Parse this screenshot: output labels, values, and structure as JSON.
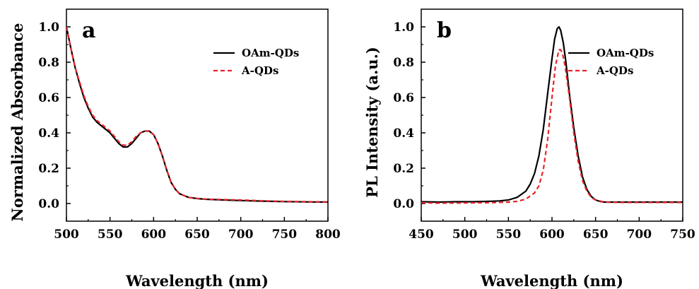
{
  "chart_data": [
    {
      "type": "line",
      "panel_label": "a",
      "xlabel": "Wavelength (nm)",
      "ylabel": "Normalized Absorbance",
      "xlim": [
        500,
        800
      ],
      "ylim": [
        -0.1,
        1.1
      ],
      "x_ticks": [
        500,
        550,
        600,
        650,
        700,
        750,
        800
      ],
      "y_ticks": [
        0.0,
        0.2,
        0.4,
        0.6,
        0.8,
        1.0
      ],
      "x_tick_labels": [
        "500",
        "550",
        "600",
        "650",
        "700",
        "750",
        "800"
      ],
      "y_tick_labels": [
        "0.0",
        "0.2",
        "0.4",
        "0.6",
        "0.8",
        "1.0"
      ],
      "grid": false,
      "legend_position": "top-right",
      "series": [
        {
          "name": "OAm-QDs",
          "color": "#000000",
          "dash": "solid",
          "x": [
            500,
            505,
            510,
            515,
            520,
            525,
            530,
            535,
            540,
            545,
            550,
            555,
            560,
            565,
            570,
            575,
            580,
            585,
            590,
            595,
            600,
            605,
            610,
            615,
            620,
            625,
            630,
            640,
            650,
            660,
            680,
            700,
            720,
            750,
            780,
            800
          ],
          "y": [
            1.0,
            0.88,
            0.77,
            0.68,
            0.6,
            0.54,
            0.49,
            0.46,
            0.44,
            0.42,
            0.4,
            0.37,
            0.34,
            0.32,
            0.32,
            0.34,
            0.37,
            0.4,
            0.41,
            0.41,
            0.39,
            0.34,
            0.27,
            0.19,
            0.12,
            0.08,
            0.055,
            0.035,
            0.028,
            0.024,
            0.02,
            0.017,
            0.014,
            0.011,
            0.009,
            0.008
          ]
        },
        {
          "name": "A-QDs",
          "color": "#e8232a",
          "dash": "dashed",
          "x": [
            500,
            505,
            510,
            515,
            520,
            525,
            530,
            535,
            540,
            545,
            550,
            555,
            560,
            565,
            570,
            575,
            580,
            585,
            590,
            595,
            600,
            605,
            610,
            615,
            620,
            625,
            630,
            640,
            650,
            660,
            680,
            700,
            720,
            750,
            780,
            800
          ],
          "y": [
            1.0,
            0.88,
            0.77,
            0.69,
            0.61,
            0.55,
            0.5,
            0.47,
            0.45,
            0.43,
            0.41,
            0.38,
            0.35,
            0.33,
            0.33,
            0.35,
            0.38,
            0.4,
            0.41,
            0.41,
            0.39,
            0.34,
            0.27,
            0.19,
            0.12,
            0.08,
            0.055,
            0.035,
            0.029,
            0.025,
            0.022,
            0.02,
            0.016,
            0.012,
            0.01,
            0.009
          ]
        }
      ]
    },
    {
      "type": "line",
      "panel_label": "b",
      "xlabel": "Wavelength (nm)",
      "ylabel": "PL Intensity (a.u.)",
      "xlim": [
        450,
        750
      ],
      "ylim": [
        -0.1,
        1.1
      ],
      "x_ticks": [
        450,
        500,
        550,
        600,
        650,
        700,
        750
      ],
      "y_ticks": [
        0.0,
        0.2,
        0.4,
        0.6,
        0.8,
        1.0
      ],
      "x_tick_labels": [
        "450",
        "500",
        "550",
        "600",
        "650",
        "700",
        "750"
      ],
      "y_tick_labels": [
        "0.0",
        "0.2",
        "0.4",
        "0.6",
        "0.8",
        "1.0"
      ],
      "grid": false,
      "legend_position": "top-right",
      "series": [
        {
          "name": "OAm-QDs",
          "color": "#000000",
          "dash": "solid",
          "x": [
            450,
            470,
            490,
            510,
            530,
            540,
            550,
            560,
            570,
            575,
            580,
            585,
            590,
            595,
            600,
            603,
            606,
            608,
            610,
            613,
            616,
            620,
            625,
            630,
            635,
            640,
            645,
            650,
            655,
            660,
            680,
            700,
            720,
            750
          ],
          "y": [
            0.01,
            0.008,
            0.01,
            0.01,
            0.013,
            0.015,
            0.02,
            0.035,
            0.07,
            0.11,
            0.17,
            0.27,
            0.42,
            0.62,
            0.82,
            0.93,
            0.99,
            1.0,
            0.98,
            0.91,
            0.8,
            0.62,
            0.43,
            0.27,
            0.15,
            0.08,
            0.04,
            0.02,
            0.012,
            0.008,
            0.008,
            0.008,
            0.008,
            0.008
          ]
        },
        {
          "name": "A-QDs",
          "color": "#e8232a",
          "dash": "dashed",
          "x": [
            450,
            470,
            490,
            510,
            530,
            550,
            560,
            570,
            580,
            585,
            590,
            595,
            600,
            604,
            608,
            610,
            612,
            615,
            620,
            625,
            630,
            635,
            640,
            645,
            650,
            660,
            680,
            700,
            720,
            750
          ],
          "y": [
            0.005,
            0.002,
            0.003,
            0.004,
            0.005,
            0.008,
            0.012,
            0.025,
            0.06,
            0.1,
            0.19,
            0.36,
            0.6,
            0.78,
            0.87,
            0.87,
            0.85,
            0.78,
            0.6,
            0.4,
            0.24,
            0.13,
            0.07,
            0.035,
            0.02,
            0.008,
            0.006,
            0.006,
            0.006,
            0.006
          ]
        }
      ]
    }
  ]
}
